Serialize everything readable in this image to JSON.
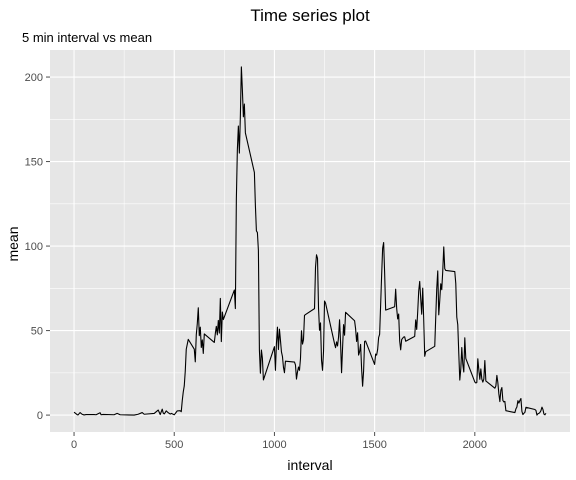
{
  "chart_data": {
    "type": "line",
    "title": "Time series plot",
    "subtitle": "5 min interval vs mean",
    "xlabel": "interval",
    "ylabel": "mean",
    "xlim": [
      -120,
      2475
    ],
    "ylim": [
      -10,
      216
    ],
    "x_ticks": [
      0,
      500,
      1000,
      1500,
      2000
    ],
    "y_ticks": [
      0,
      50,
      100,
      150,
      200
    ],
    "x_minor_ticks": [
      250,
      750,
      1250,
      1750,
      2250
    ],
    "y_minor_ticks": [
      25,
      75,
      125,
      175
    ],
    "grid": true,
    "legend": "none",
    "colors": {
      "panel": "#e6e6e6",
      "grid": "#ffffff",
      "line": "#000000",
      "ticks": "#4d4d4d"
    },
    "series": [
      {
        "points": [
          [
            0,
            1.7
          ],
          [
            15,
            0.3
          ],
          [
            20,
            0.1
          ],
          [
            30,
            1.5
          ],
          [
            40,
            0.5
          ],
          [
            50,
            0.1
          ],
          [
            60,
            0.3
          ],
          [
            100,
            0.3
          ],
          [
            110,
            0.2
          ],
          [
            120,
            0.8
          ],
          [
            130,
            1.4
          ],
          [
            135,
            0.2
          ],
          [
            145,
            0.4
          ],
          [
            200,
            0.2
          ],
          [
            215,
            1.0
          ],
          [
            230,
            0.2
          ],
          [
            300,
            0
          ],
          [
            320,
            0.5
          ],
          [
            340,
            1.5
          ],
          [
            350,
            0.5
          ],
          [
            400,
            1.0
          ],
          [
            420,
            3.0
          ],
          [
            430,
            0.3
          ],
          [
            440,
            3.5
          ],
          [
            445,
            1.2
          ],
          [
            450,
            0.7
          ],
          [
            455,
            1.5
          ],
          [
            460,
            2.5
          ],
          [
            470,
            1.4
          ],
          [
            480,
            0.6
          ],
          [
            485,
            1.0
          ],
          [
            500,
            0.2
          ],
          [
            505,
            0.9
          ],
          [
            515,
            2.5
          ],
          [
            530,
            2.6
          ],
          [
            535,
            2.0
          ],
          [
            540,
            8.5
          ],
          [
            545,
            13.7
          ],
          [
            550,
            17.3
          ],
          [
            555,
            26.0
          ],
          [
            560,
            39.0
          ],
          [
            570,
            44.8
          ],
          [
            600,
            39.0
          ],
          [
            605,
            31.5
          ],
          [
            610,
            47.5
          ],
          [
            615,
            54.0
          ],
          [
            620,
            63.5
          ],
          [
            625,
            47.0
          ],
          [
            630,
            52.0
          ],
          [
            635,
            40.0
          ],
          [
            640,
            44.5
          ],
          [
            645,
            36.5
          ],
          [
            650,
            48.0
          ],
          [
            700,
            43.0
          ],
          [
            705,
            48.2
          ],
          [
            710,
            52.5
          ],
          [
            715,
            47.5
          ],
          [
            720,
            56.0
          ],
          [
            725,
            48.5
          ],
          [
            730,
            69.0
          ],
          [
            735,
            43.5
          ],
          [
            740,
            61.0
          ],
          [
            745,
            56.5
          ],
          [
            800,
            74.0
          ],
          [
            805,
            63.0
          ],
          [
            810,
            128.0
          ],
          [
            815,
            157.0
          ],
          [
            820,
            171.0
          ],
          [
            825,
            155.0
          ],
          [
            830,
            177.0
          ],
          [
            835,
            206.0
          ],
          [
            840,
            192.5
          ],
          [
            845,
            176.5
          ],
          [
            850,
            184.0
          ],
          [
            855,
            167.0
          ],
          [
            900,
            143.5
          ],
          [
            905,
            124.0
          ],
          [
            910,
            109.0
          ],
          [
            915,
            108.0
          ],
          [
            920,
            97.5
          ],
          [
            925,
            38.5
          ],
          [
            930,
            24.8
          ],
          [
            935,
            38.5
          ],
          [
            940,
            33.5
          ],
          [
            945,
            20.8
          ],
          [
            1000,
            40.5
          ],
          [
            1005,
            26.5
          ],
          [
            1010,
            42.5
          ],
          [
            1015,
            52.0
          ],
          [
            1020,
            38.8
          ],
          [
            1025,
            50.8
          ],
          [
            1030,
            44.3
          ],
          [
            1035,
            37.4
          ],
          [
            1040,
            34.7
          ],
          [
            1045,
            28.3
          ],
          [
            1050,
            25.1
          ],
          [
            1055,
            31.9
          ],
          [
            1100,
            31.4
          ],
          [
            1105,
            29.7
          ],
          [
            1110,
            21.3
          ],
          [
            1115,
            25.5
          ],
          [
            1120,
            28.4
          ],
          [
            1125,
            26.5
          ],
          [
            1130,
            33.4
          ],
          [
            1135,
            49.9
          ],
          [
            1140,
            42.0
          ],
          [
            1145,
            44.6
          ],
          [
            1150,
            59.0
          ],
          [
            1155,
            59.5
          ],
          [
            1200,
            63.0
          ],
          [
            1205,
            87.5
          ],
          [
            1210,
            94.8
          ],
          [
            1215,
            92.8
          ],
          [
            1220,
            63.4
          ],
          [
            1225,
            50.2
          ],
          [
            1230,
            54.5
          ],
          [
            1235,
            32.4
          ],
          [
            1240,
            26.5
          ],
          [
            1245,
            37.7
          ],
          [
            1250,
            67.5
          ],
          [
            1255,
            66.3
          ],
          [
            1300,
            42.2
          ],
          [
            1305,
            39.9
          ],
          [
            1310,
            43.3
          ],
          [
            1315,
            40.9
          ],
          [
            1320,
            46.2
          ],
          [
            1325,
            56.4
          ],
          [
            1330,
            42.8
          ],
          [
            1335,
            25.1
          ],
          [
            1340,
            39.7
          ],
          [
            1345,
            53.5
          ],
          [
            1350,
            47.3
          ],
          [
            1355,
            60.8
          ],
          [
            1400,
            55.8
          ],
          [
            1405,
            51.1
          ],
          [
            1410,
            43.6
          ],
          [
            1415,
            48.7
          ],
          [
            1420,
            35.5
          ],
          [
            1425,
            37.5
          ],
          [
            1430,
            41.8
          ],
          [
            1435,
            27.5
          ],
          [
            1440,
            17.1
          ],
          [
            1445,
            26.1
          ],
          [
            1450,
            43.6
          ],
          [
            1455,
            43.8
          ],
          [
            1500,
            30.0
          ],
          [
            1505,
            36.1
          ],
          [
            1510,
            35.5
          ],
          [
            1515,
            38.8
          ],
          [
            1520,
            45.9
          ],
          [
            1525,
            47.8
          ],
          [
            1530,
            65.3
          ],
          [
            1535,
            82.9
          ],
          [
            1540,
            98.7
          ],
          [
            1545,
            102.1
          ],
          [
            1550,
            84.0
          ],
          [
            1555,
            62.1
          ],
          [
            1600,
            64.1
          ],
          [
            1605,
            74.5
          ],
          [
            1610,
            63.2
          ],
          [
            1615,
            56.9
          ],
          [
            1620,
            59.8
          ],
          [
            1625,
            43.9
          ],
          [
            1630,
            38.6
          ],
          [
            1635,
            44.7
          ],
          [
            1640,
            45.5
          ],
          [
            1645,
            46.2
          ],
          [
            1650,
            46.3
          ],
          [
            1655,
            43.7
          ],
          [
            1700,
            46.6
          ],
          [
            1705,
            56.3
          ],
          [
            1710,
            50.7
          ],
          [
            1715,
            61.2
          ],
          [
            1720,
            73.4
          ],
          [
            1725,
            79.1
          ],
          [
            1730,
            68.9
          ],
          [
            1735,
            59.7
          ],
          [
            1740,
            75.1
          ],
          [
            1745,
            56.5
          ],
          [
            1750,
            34.8
          ],
          [
            1755,
            37.5
          ],
          [
            1800,
            40.7
          ],
          [
            1805,
            58.0
          ],
          [
            1810,
            74.7
          ],
          [
            1815,
            85.3
          ],
          [
            1820,
            59.3
          ],
          [
            1825,
            67.8
          ],
          [
            1830,
            77.7
          ],
          [
            1835,
            74.2
          ],
          [
            1840,
            85.3
          ],
          [
            1845,
            99.5
          ],
          [
            1850,
            86.6
          ],
          [
            1855,
            85.6
          ],
          [
            1900,
            84.9
          ],
          [
            1905,
            77.8
          ],
          [
            1910,
            58.0
          ],
          [
            1915,
            53.4
          ],
          [
            1920,
            36.3
          ],
          [
            1925,
            20.7
          ],
          [
            1930,
            27.4
          ],
          [
            1935,
            40.0
          ],
          [
            1940,
            30.2
          ],
          [
            1945,
            25.5
          ],
          [
            1950,
            45.7
          ],
          [
            1955,
            33.5
          ],
          [
            2000,
            19.6
          ],
          [
            2005,
            19.0
          ],
          [
            2010,
            19.3
          ],
          [
            2015,
            33.3
          ],
          [
            2020,
            26.8
          ],
          [
            2025,
            21.2
          ],
          [
            2030,
            27.3
          ],
          [
            2035,
            21.3
          ],
          [
            2040,
            19.5
          ],
          [
            2045,
            21.3
          ],
          [
            2050,
            32.3
          ],
          [
            2055,
            20.2
          ],
          [
            2100,
            15.9
          ],
          [
            2105,
            17.2
          ],
          [
            2110,
            23.5
          ],
          [
            2115,
            19.2
          ],
          [
            2120,
            12.5
          ],
          [
            2125,
            8.0
          ],
          [
            2130,
            14.7
          ],
          [
            2135,
            16.3
          ],
          [
            2140,
            8.7
          ],
          [
            2145,
            7.8
          ],
          [
            2150,
            8.1
          ],
          [
            2155,
            2.6
          ],
          [
            2200,
            1.5
          ],
          [
            2205,
            3.7
          ],
          [
            2210,
            4.8
          ],
          [
            2215,
            8.5
          ],
          [
            2220,
            7.1
          ],
          [
            2225,
            8.7
          ],
          [
            2230,
            9.8
          ],
          [
            2235,
            2.2
          ],
          [
            2240,
            0.3
          ],
          [
            2245,
            1.1
          ],
          [
            2250,
            1.6
          ],
          [
            2255,
            4.6
          ],
          [
            2300,
            3.3
          ],
          [
            2305,
            2.8
          ],
          [
            2310,
            0
          ],
          [
            2315,
            0.8
          ],
          [
            2320,
            1.0
          ],
          [
            2325,
            1.6
          ],
          [
            2330,
            2.6
          ],
          [
            2335,
            4.7
          ],
          [
            2340,
            3.3
          ],
          [
            2345,
            0.6
          ],
          [
            2350,
            0.2
          ],
          [
            2355,
            1.1
          ]
        ]
      }
    ]
  }
}
